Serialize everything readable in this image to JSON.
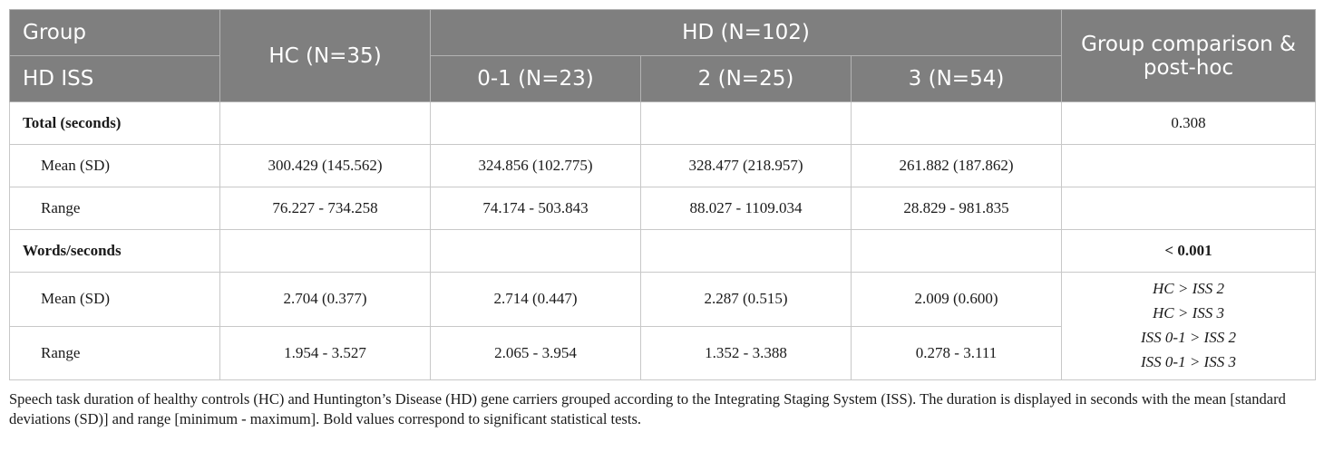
{
  "header": {
    "group_label": "Group",
    "iss_label": "HD ISS",
    "hc_label": "HC (N=35)",
    "hd_label": "HD (N=102)",
    "iss01_label": "0-1 (N=23)",
    "iss2_label": "2 (N=25)",
    "iss3_label": "3 (N=54)",
    "comparison_label": "Group comparison & post-hoc"
  },
  "sections": [
    {
      "title": "Total (seconds)",
      "p_value": "0.308",
      "rows": [
        {
          "label": "Mean (SD)",
          "values": [
            "300.429 (145.562)",
            "324.856 (102.775)",
            "328.477 (218.957)",
            "261.882 (187.862)"
          ]
        },
        {
          "label": "Range",
          "values": [
            "76.227 - 734.258",
            "74.174 - 503.843",
            "88.027 - 1109.034",
            "28.829 - 981.835"
          ]
        }
      ]
    },
    {
      "title": "Words/seconds",
      "p_value": "< 0.001",
      "rows": [
        {
          "label": "Mean (SD)",
          "values": [
            "2.704 (0.377)",
            "2.714 (0.447)",
            "2.287 (0.515)",
            "2.009 (0.600)"
          ]
        },
        {
          "label": "Range",
          "values": [
            "1.954 - 3.527",
            "2.065 - 3.954",
            "1.352 - 3.388",
            "0.278 - 3.111"
          ]
        }
      ],
      "posthoc": [
        "HC > ISS 2",
        "HC > ISS 3",
        "ISS 0-1 > ISS 2",
        "ISS 0-1 > ISS 3"
      ]
    }
  ],
  "caption": "Speech task duration of healthy controls (HC) and Huntington’s Disease (HD) gene carriers grouped according to the Integrating Staging System (ISS). The duration is displayed in seconds with the mean [standard deviations (SD)] and range [minimum - maximum]. Bold values correspond to significant statistical tests."
}
